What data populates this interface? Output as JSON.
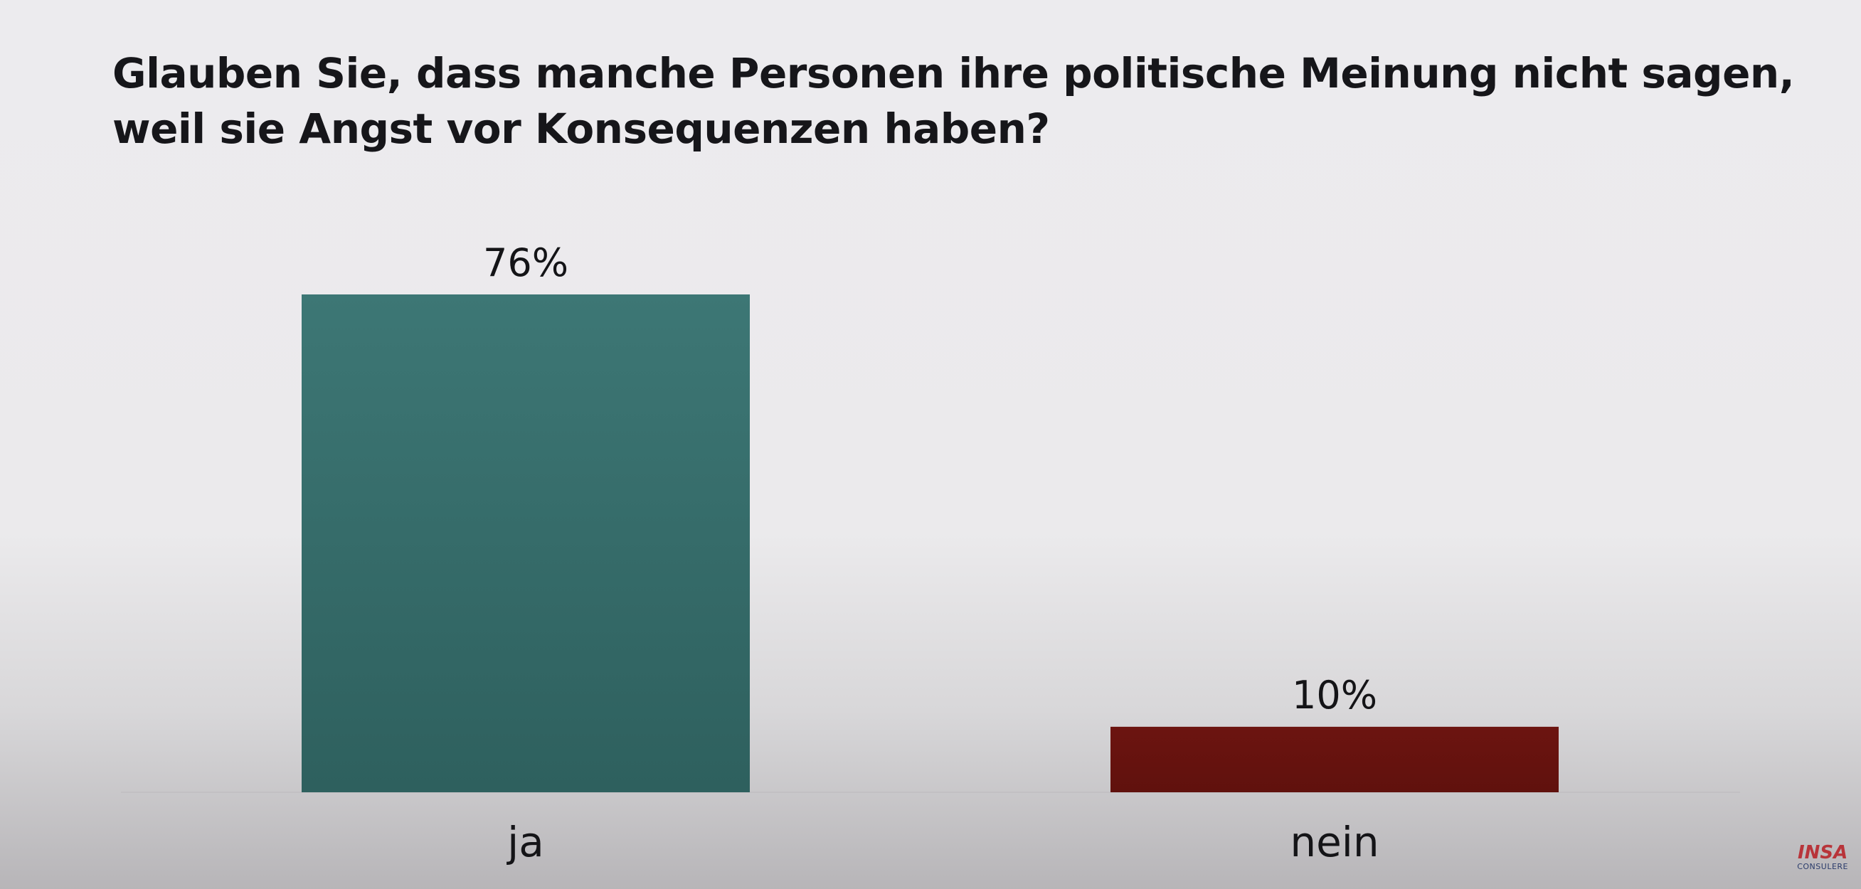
{
  "title": {
    "line1": "Glauben Sie, dass manche Personen ihre politische Meinung nicht sagen,",
    "line2": "weil sie Angst vor Konsequenzen haben?"
  },
  "chart_data": {
    "type": "bar",
    "title": "Glauben Sie, dass manche Personen ihre politische Meinung nicht sagen, weil sie Angst vor Konsequenzen haben?",
    "categories": [
      "ja",
      "nein"
    ],
    "values": [
      76,
      10
    ],
    "value_labels": [
      "76%",
      "10%"
    ],
    "colors": [
      "#3b7673",
      "#6a1310"
    ],
    "unit": "%",
    "ylim": [
      0,
      100
    ],
    "grid": false,
    "legend": "none"
  },
  "logo": {
    "main": "INSA",
    "sub": "CONSULERE"
  }
}
